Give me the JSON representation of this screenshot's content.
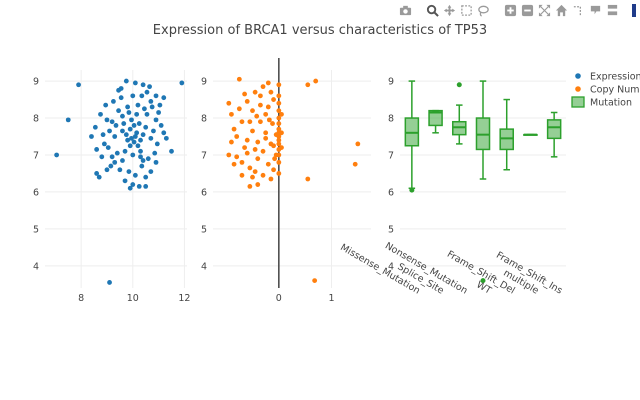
{
  "chart_data": {
    "type": "scatter+box",
    "title": "Expression of BRCA1 versus characteristics of TP53",
    "legend": [
      {
        "name": "Expression",
        "color": "#1f77b4",
        "marker": "dot"
      },
      {
        "name": "Copy Number",
        "color": "#ff7f0e",
        "marker": "dot"
      },
      {
        "name": "Mutation",
        "color": "#2ca02c",
        "marker": "box"
      }
    ],
    "panels": [
      {
        "name": "Expression",
        "type": "scatter",
        "color": "#1f77b4",
        "xlim": [
          6.6,
          12.1
        ],
        "ylim": [
          3.4,
          9.3
        ],
        "xticks": [
          8,
          10,
          12
        ],
        "yticks": [
          4,
          5,
          6,
          7,
          8,
          9
        ],
        "zero_line": false,
        "points": [
          [
            7.9,
            8.9
          ],
          [
            7.5,
            7.95
          ],
          [
            7.05,
            7.0
          ],
          [
            9.1,
            3.55
          ],
          [
            11.9,
            8.95
          ],
          [
            11.2,
            7.6
          ],
          [
            9.9,
            6.1
          ],
          [
            10.25,
            6.15
          ],
          [
            10.5,
            6.15
          ],
          [
            8.7,
            6.4
          ],
          [
            9.0,
            6.6
          ],
          [
            8.6,
            6.5
          ],
          [
            9.3,
            6.8
          ],
          [
            10.9,
            6.8
          ],
          [
            9.75,
            9.0
          ],
          [
            10.1,
            8.95
          ],
          [
            10.4,
            8.9
          ],
          [
            10.65,
            8.85
          ],
          [
            9.55,
            8.8
          ],
          [
            10.9,
            8.6
          ],
          [
            11.2,
            8.55
          ],
          [
            8.75,
            8.1
          ],
          [
            8.55,
            7.75
          ],
          [
            8.4,
            7.5
          ],
          [
            8.9,
            7.3
          ],
          [
            11.5,
            7.1
          ],
          [
            9.2,
            7.9
          ],
          [
            9.45,
            8.2
          ],
          [
            9.8,
            8.3
          ],
          [
            10.2,
            8.35
          ],
          [
            10.55,
            8.1
          ],
          [
            10.9,
            7.95
          ],
          [
            11.1,
            7.8
          ],
          [
            9.05,
            7.2
          ],
          [
            9.3,
            7.5
          ],
          [
            9.6,
            7.65
          ],
          [
            9.9,
            7.7
          ],
          [
            10.15,
            7.6
          ],
          [
            10.4,
            7.55
          ],
          [
            10.7,
            7.45
          ],
          [
            10.95,
            7.3
          ],
          [
            9.4,
            7.05
          ],
          [
            9.7,
            7.1
          ],
          [
            10.0,
            7.0
          ],
          [
            10.3,
            6.95
          ],
          [
            10.6,
            6.9
          ],
          [
            8.8,
            6.95
          ],
          [
            9.15,
            6.7
          ],
          [
            9.5,
            6.6
          ],
          [
            9.85,
            6.55
          ],
          [
            10.1,
            6.45
          ],
          [
            10.35,
            6.7
          ],
          [
            10.7,
            6.55
          ],
          [
            9.95,
            7.45
          ],
          [
            10.05,
            7.35
          ],
          [
            9.9,
            7.25
          ],
          [
            10.2,
            7.25
          ],
          [
            10.1,
            7.5
          ],
          [
            9.8,
            7.4
          ],
          [
            10.3,
            7.4
          ],
          [
            9.65,
            7.85
          ],
          [
            9.95,
            7.95
          ],
          [
            10.25,
            7.85
          ],
          [
            10.5,
            7.75
          ],
          [
            10.8,
            7.65
          ],
          [
            8.85,
            7.55
          ],
          [
            9.1,
            7.65
          ],
          [
            9.35,
            7.8
          ],
          [
            9.6,
            8.05
          ],
          [
            9.85,
            8.15
          ],
          [
            10.15,
            8.1
          ],
          [
            10.45,
            8.25
          ],
          [
            10.75,
            8.3
          ],
          [
            9.25,
            8.45
          ],
          [
            9.55,
            8.55
          ],
          [
            10.0,
            8.6
          ],
          [
            10.35,
            8.6
          ],
          [
            10.7,
            8.45
          ],
          [
            11.0,
            8.15
          ],
          [
            11.3,
            7.45
          ],
          [
            8.6,
            7.15
          ],
          [
            9.0,
            7.95
          ],
          [
            9.7,
            6.3
          ],
          [
            10.0,
            6.2
          ],
          [
            10.5,
            6.4
          ],
          [
            8.95,
            8.35
          ],
          [
            9.45,
            8.75
          ],
          [
            10.55,
            8.7
          ],
          [
            11.05,
            8.35
          ],
          [
            9.2,
            6.95
          ],
          [
            10.85,
            7.05
          ],
          [
            10.05,
            7.8
          ],
          [
            9.75,
            7.55
          ],
          [
            10.3,
            7.1
          ],
          [
            9.6,
            6.85
          ],
          [
            10.4,
            6.85
          ]
        ]
      },
      {
        "name": "Copy Number",
        "type": "scatter",
        "color": "#ff7f0e",
        "xlim": [
          -1.25,
          1.75
        ],
        "ylim": [
          3.4,
          9.3
        ],
        "xticks": [
          0,
          1
        ],
        "yticks": [
          4,
          5,
          6,
          7,
          8,
          9
        ],
        "zero_line": true,
        "points": [
          [
            -0.75,
            9.05
          ],
          [
            0.68,
            3.6
          ],
          [
            1.45,
            6.75
          ],
          [
            1.5,
            7.3
          ],
          [
            0.55,
            8.9
          ],
          [
            0.7,
            9.0
          ],
          [
            0.55,
            6.35
          ],
          [
            -0.4,
            6.2
          ],
          [
            -0.55,
            6.15
          ],
          [
            -0.15,
            6.35
          ],
          [
            -0.1,
            6.6
          ],
          [
            -0.9,
            8.1
          ],
          [
            -0.8,
            7.5
          ],
          [
            -0.95,
            7.0
          ],
          [
            -0.7,
            6.8
          ],
          [
            -0.6,
            7.4
          ],
          [
            -0.5,
            8.2
          ],
          [
            -0.45,
            8.7
          ],
          [
            -0.3,
            8.85
          ],
          [
            -0.2,
            8.95
          ],
          [
            -0.1,
            8.5
          ],
          [
            -0.35,
            7.9
          ],
          [
            -0.25,
            7.6
          ],
          [
            -0.15,
            7.3
          ],
          [
            -0.05,
            7.0
          ],
          [
            -0.4,
            6.9
          ],
          [
            -0.65,
            7.2
          ],
          [
            -0.85,
            7.7
          ],
          [
            -0.55,
            7.9
          ],
          [
            -0.3,
            7.1
          ],
          [
            -0.2,
            6.75
          ],
          [
            -0.45,
            6.55
          ],
          [
            -0.7,
            6.45
          ],
          [
            -0.35,
            8.35
          ],
          [
            -0.6,
            8.45
          ],
          [
            -0.75,
            8.25
          ],
          [
            -0.25,
            8.1
          ],
          [
            -0.12,
            7.85
          ],
          [
            -0.05,
            7.55
          ],
          [
            -0.1,
            7.25
          ],
          [
            -0.5,
            7.65
          ],
          [
            -0.8,
            6.95
          ],
          [
            -0.9,
            7.35
          ],
          [
            -0.4,
            7.35
          ],
          [
            -0.2,
            8.3
          ],
          [
            0.0,
            6.5
          ],
          [
            0.0,
            6.8
          ],
          [
            0.0,
            7.0
          ],
          [
            0.0,
            7.15
          ],
          [
            0.0,
            7.3
          ],
          [
            0.0,
            7.4
          ],
          [
            0.0,
            7.5
          ],
          [
            0.0,
            7.6
          ],
          [
            0.0,
            7.7
          ],
          [
            0.0,
            7.85
          ],
          [
            0.0,
            8.0
          ],
          [
            0.0,
            8.2
          ],
          [
            0.0,
            8.4
          ],
          [
            0.0,
            8.6
          ],
          [
            0.0,
            8.9
          ],
          [
            0.05,
            7.2
          ],
          [
            0.05,
            7.6
          ],
          [
            0.05,
            8.1
          ],
          [
            -0.55,
            6.65
          ],
          [
            -0.65,
            8.65
          ],
          [
            -0.95,
            8.4
          ],
          [
            -0.3,
            6.45
          ],
          [
            -0.15,
            8.7
          ],
          [
            -0.7,
            7.9
          ],
          [
            -0.45,
            7.15
          ],
          [
            -0.25,
            7.45
          ],
          [
            -0.6,
            7.05
          ],
          [
            -0.85,
            6.75
          ],
          [
            -0.35,
            8.6
          ],
          [
            -0.5,
            6.4
          ],
          [
            -0.08,
            6.9
          ],
          [
            -0.18,
            7.95
          ],
          [
            -0.42,
            8.05
          ]
        ]
      },
      {
        "name": "Mutation",
        "type": "box",
        "color": "#2ca02c",
        "ylim": [
          3.4,
          9.3
        ],
        "yticks": [
          4,
          5,
          6,
          7,
          8,
          9
        ],
        "categories": [
          "Missense_Mutation",
          "Splice_Site",
          "Nonsense_Mutation",
          "WT",
          "Frame_Shift_Del",
          "multiple",
          "Frame_Shift_Ins"
        ],
        "boxes": [
          {
            "category": "Missense_Mutation",
            "min": 6.1,
            "q1": 7.25,
            "median": 7.6,
            "q3": 8.0,
            "max": 9.0,
            "outliers": [
              6.05
            ]
          },
          {
            "category": "Splice_Site",
            "min": 7.6,
            "q1": 7.8,
            "median": 8.15,
            "q3": 8.2,
            "max": 8.2,
            "outliers": []
          },
          {
            "category": "Nonsense_Mutation",
            "min": 7.3,
            "q1": 7.55,
            "median": 7.75,
            "q3": 7.9,
            "max": 8.35,
            "outliers": [
              8.9
            ]
          },
          {
            "category": "WT",
            "min": 6.35,
            "q1": 7.15,
            "median": 7.55,
            "q3": 8.0,
            "max": 9.0,
            "outliers": [
              3.6
            ]
          },
          {
            "category": "Frame_Shift_Del",
            "min": 6.6,
            "q1": 7.15,
            "median": 7.45,
            "q3": 7.7,
            "max": 8.5,
            "outliers": []
          },
          {
            "category": "multiple",
            "min": 7.55,
            "q1": 7.55,
            "median": 7.55,
            "q3": 7.55,
            "max": 7.55,
            "outliers": []
          },
          {
            "category": "Frame_Shift_Ins",
            "min": 6.95,
            "q1": 7.45,
            "median": 7.75,
            "q3": 7.95,
            "max": 8.15,
            "outliers": []
          }
        ]
      }
    ]
  },
  "modebar": {
    "buttons": [
      "camera-icon",
      "zoom-icon",
      "pan-icon",
      "box-select-icon",
      "lasso-icon",
      "zoom-in-icon",
      "zoom-out-icon",
      "autoscale-icon",
      "home-icon",
      "spike-lines-icon",
      "hover-closest-icon",
      "hover-compare-icon"
    ]
  }
}
